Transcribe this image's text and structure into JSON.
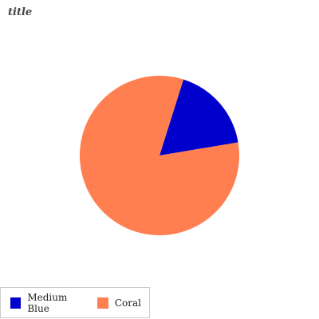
{
  "chart_data": {
    "type": "pie",
    "title": "title",
    "legend_position": "bottom-left",
    "slices": [
      {
        "label": "Medium Blue",
        "value": 17.5,
        "color": "#0000CD"
      },
      {
        "label": "Coral",
        "value": 82.5,
        "color": "#FF7F50"
      }
    ]
  }
}
